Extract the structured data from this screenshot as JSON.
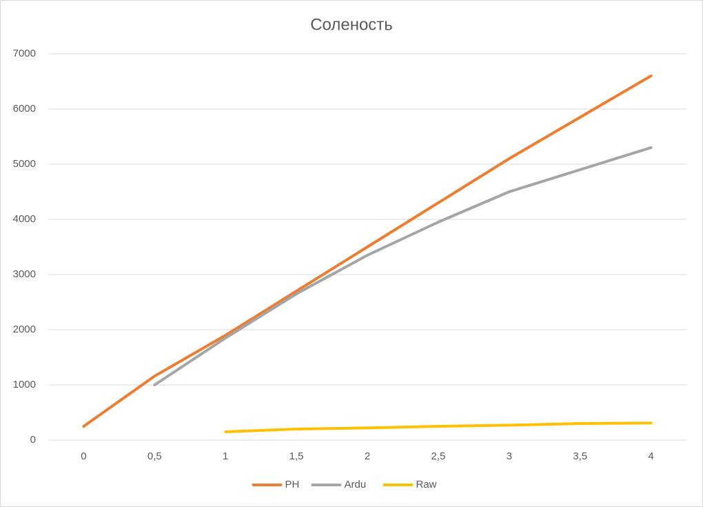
{
  "chart_data": {
    "type": "line",
    "title": "Соленость",
    "categories": [
      "0",
      "0,5",
      "1",
      "1,5",
      "2",
      "2,5",
      "3",
      "3,5",
      "4"
    ],
    "series": [
      {
        "name": "PH",
        "color": "#ed7d31",
        "values": [
          250,
          1160,
          1900,
          2700,
          3500,
          4300,
          5100,
          5850,
          6600
        ]
      },
      {
        "name": "Ardu",
        "color": "#a5a5a5",
        "values": [
          null,
          1000,
          1850,
          2650,
          3350,
          3950,
          4500,
          4900,
          5300
        ]
      },
      {
        "name": "Raw",
        "color": "#ffc000",
        "values": [
          null,
          null,
          150,
          200,
          220,
          250,
          270,
          300,
          310
        ]
      }
    ],
    "ylim": [
      0,
      7000
    ],
    "yticks": [
      0,
      1000,
      2000,
      3000,
      4000,
      5000,
      6000,
      7000
    ],
    "grid": true,
    "legend": "bottom"
  }
}
